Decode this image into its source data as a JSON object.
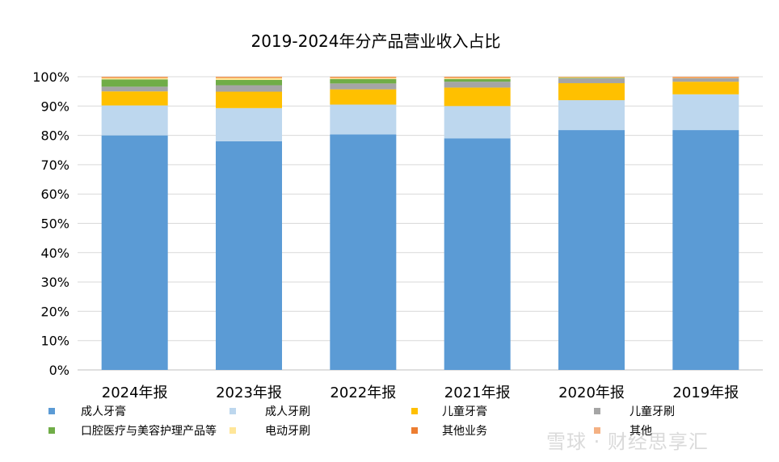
{
  "chart_data": {
    "type": "bar",
    "stacked": true,
    "title": "2019-2024年分产品营业收入占比",
    "categories": [
      "2024年报",
      "2023年报",
      "2022年报",
      "2021年报",
      "2020年报",
      "2019年报"
    ],
    "ylim": [
      0,
      100
    ],
    "yticks": [
      "0%",
      "10%",
      "20%",
      "30%",
      "40%",
      "50%",
      "60%",
      "70%",
      "80%",
      "90%",
      "100%"
    ],
    "grid": true,
    "legend_position": "bottom",
    "series": [
      {
        "name": "成人牙膏",
        "color": "#5B9BD5",
        "values": [
          80.0,
          78.0,
          80.3,
          79.0,
          81.8,
          81.8
        ]
      },
      {
        "name": "成人牙刷",
        "color": "#BDD7EE",
        "values": [
          10.2,
          11.3,
          10.2,
          11.0,
          10.2,
          12.2
        ]
      },
      {
        "name": "儿童牙膏",
        "color": "#FFC000",
        "values": [
          4.8,
          5.6,
          5.2,
          6.3,
          5.8,
          4.3
        ]
      },
      {
        "name": "儿童牙刷",
        "color": "#A5A5A5",
        "values": [
          1.6,
          2.2,
          2.0,
          2.0,
          1.6,
          1.2
        ]
      },
      {
        "name": "口腔医疗与美容护理产品等",
        "color": "#70AD47",
        "values": [
          2.5,
          1.8,
          1.5,
          0.9,
          0.2,
          0.0
        ]
      },
      {
        "name": "电动牙刷",
        "color": "#FFE699",
        "values": [
          0.5,
          0.7,
          0.4,
          0.4,
          0.3,
          0.1
        ]
      },
      {
        "name": "其他业务",
        "color": "#ED7D31",
        "values": [
          0.3,
          0.3,
          0.3,
          0.3,
          0.1,
          0.3
        ]
      },
      {
        "name": "其他",
        "color": "#F4B183",
        "values": [
          0.1,
          0.1,
          0.1,
          0.1,
          0.0,
          0.1
        ]
      }
    ]
  },
  "watermark": "雪球 · 财经思享汇"
}
